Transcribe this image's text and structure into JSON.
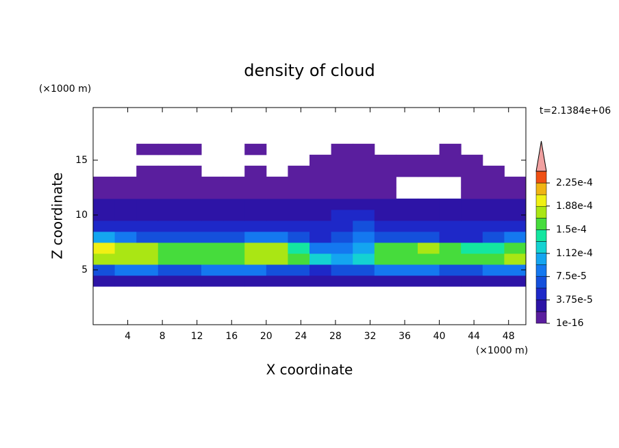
{
  "chart_data": {
    "type": "contour",
    "title": "density of cloud",
    "x_label": "X coordinate",
    "y_label": "Z coordinate",
    "x_unit": "(×1000 m)",
    "y_unit": "(×1000 m)",
    "annotation": "t=2.1384e+06",
    "xlim": [
      0,
      50
    ],
    "ylim": [
      0,
      19.8
    ],
    "xticks": [
      4,
      8,
      12,
      16,
      20,
      24,
      28,
      32,
      36,
      40,
      44,
      48
    ],
    "yticks": [
      5,
      10,
      15
    ],
    "x": [
      1.25,
      3.75,
      6.25,
      8.75,
      11.25,
      13.75,
      16.25,
      18.75,
      21.25,
      23.75,
      26.25,
      28.75,
      31.25,
      33.75,
      36.25,
      38.75,
      41.25,
      43.75,
      46.25,
      48.75
    ],
    "z": [
      4,
      5,
      6,
      7,
      8,
      9,
      10,
      11,
      12,
      13,
      14,
      15,
      16
    ],
    "values": [
      [
        2.5e-05,
        3e-05,
        3e-05,
        2.5e-05,
        3e-05,
        3e-05,
        3e-05,
        3e-05,
        3e-05,
        2.5e-05,
        3e-05,
        3e-05,
        3e-05,
        2.5e-05,
        3e-05,
        3e-05,
        3e-05,
        3e-05,
        3e-05,
        2.5e-05
      ],
      [
        7e-05,
        8e-05,
        8e-05,
        7e-05,
        7e-05,
        8e-05,
        8.5e-05,
        8e-05,
        7e-05,
        6e-05,
        5.5e-05,
        6e-05,
        7e-05,
        8e-05,
        8e-05,
        7.5e-05,
        7e-05,
        7e-05,
        8e-05,
        8.5e-05
      ],
      [
        0.00018,
        0.00017,
        0.00017,
        0.00016,
        0.00015,
        0.00015,
        0.00016,
        0.00017,
        0.000175,
        0.00016,
        0.00012,
        0.00011,
        0.000125,
        0.00015,
        0.00016,
        0.000165,
        0.00016,
        0.000155,
        0.00016,
        0.000175
      ],
      [
        0.00019,
        0.00018,
        0.000175,
        0.00016,
        0.00015,
        0.000155,
        0.00016,
        0.00018,
        0.00017,
        0.00014,
        9e-05,
        8e-05,
        0.00011,
        0.00015,
        0.000165,
        0.00017,
        0.00016,
        0.00014,
        0.000145,
        0.00016
      ],
      [
        0.0001,
        9e-05,
        7e-05,
        6e-05,
        6e-05,
        6e-05,
        7e-05,
        9e-05,
        8e-05,
        6e-05,
        5e-05,
        6e-05,
        9e-05,
        7e-05,
        6e-05,
        6e-05,
        5.5e-05,
        5e-05,
        6e-05,
        8e-05
      ],
      [
        5e-05,
        4.5e-05,
        4e-05,
        4e-05,
        4e-05,
        4e-05,
        4.5e-05,
        5e-05,
        4.5e-05,
        4e-05,
        4e-05,
        5e-05,
        6e-05,
        4.5e-05,
        4e-05,
        4e-05,
        4e-05,
        4e-05,
        4e-05,
        4.5e-05
      ],
      [
        3.5e-05,
        3e-05,
        3e-05,
        3e-05,
        3e-05,
        3e-05,
        3e-05,
        3.5e-05,
        3e-05,
        3e-05,
        3e-05,
        4e-05,
        4e-05,
        3e-05,
        3e-05,
        3e-05,
        3e-05,
        3e-05,
        3e-05,
        3e-05
      ],
      [
        2.5e-05,
        2.5e-05,
        2.5e-05,
        2e-05,
        2e-05,
        2.5e-05,
        2.5e-05,
        2.5e-05,
        2e-05,
        2e-05,
        2.5e-05,
        2.5e-05,
        2.5e-05,
        2e-05,
        2e-05,
        2e-05,
        2e-05,
        2e-05,
        2e-05,
        2.5e-05
      ],
      [
        1.5e-05,
        1.5e-05,
        1.5e-05,
        1.5e-05,
        1.5e-05,
        1.5e-05,
        1.5e-05,
        1.5e-05,
        1.5e-05,
        1.5e-05,
        1.5e-05,
        1.5e-05,
        1.5e-05,
        1.5e-05,
        null,
        null,
        null,
        1.5e-05,
        1.5e-05,
        1.5e-05
      ],
      [
        1e-05,
        1e-05,
        1e-05,
        1e-05,
        1e-05,
        1e-05,
        1e-05,
        1e-05,
        1e-05,
        1e-05,
        1e-05,
        1e-05,
        1e-05,
        1e-05,
        null,
        null,
        null,
        1e-05,
        1e-05,
        1e-05
      ],
      [
        null,
        null,
        1e-05,
        1e-05,
        1e-05,
        null,
        null,
        1e-05,
        null,
        1e-05,
        1e-05,
        1e-05,
        1e-05,
        1e-05,
        1e-05,
        1e-05,
        1e-05,
        1e-05,
        1e-05,
        null
      ],
      [
        null,
        null,
        null,
        null,
        null,
        null,
        null,
        null,
        null,
        null,
        1e-05,
        1e-05,
        1e-05,
        1e-05,
        1e-05,
        1e-05,
        1e-05,
        1e-05,
        null,
        null
      ],
      [
        null,
        null,
        1e-05,
        1e-05,
        1e-05,
        null,
        null,
        1e-05,
        null,
        null,
        null,
        1e-05,
        1e-05,
        null,
        null,
        null,
        1e-05,
        null,
        null,
        null
      ]
    ],
    "levels": [
      1e-16,
      1.875e-05,
      3.75e-05,
      5.625e-05,
      7.5e-05,
      9.375e-05,
      0.0001125,
      0.00013125,
      0.00015,
      0.00016875,
      0.0001875,
      0.00020625,
      0.000225,
      0.00024375
    ],
    "colors": [
      "#5a1e9e",
      "#2d14a6",
      "#1e28c8",
      "#1450dc",
      "#1478f0",
      "#14a5f0",
      "#14d2d2",
      "#14e6a0",
      "#46dc3c",
      "#aae614",
      "#f0f014",
      "#f0b414",
      "#f05014"
    ],
    "extend_color": "#f0a0a0",
    "colorbar_ticks": [
      1e-16,
      {
        "value": 3.75e-05,
        "label": "3.75e-5"
      },
      {
        "value": 7.5e-05,
        "label": "7.5e-5"
      },
      {
        "value": 0.000112,
        "label": "1.12e-4"
      },
      {
        "value": 0.00015,
        "label": "1.5e-4"
      },
      {
        "value": 0.000188,
        "label": "1.88e-4"
      },
      {
        "value": 0.000225,
        "label": "2.25e-4"
      }
    ]
  }
}
